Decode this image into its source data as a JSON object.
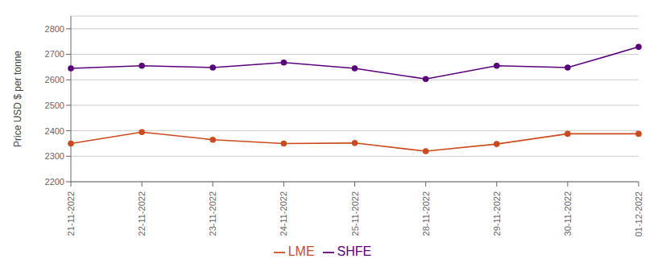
{
  "chart_data": {
    "type": "line",
    "categories": [
      "21-11-2022",
      "22-11-2022",
      "23-11-2022",
      "24-11-2022",
      "25-11-2022",
      "28-11-2022",
      "29-11-2022",
      "30-11-2022",
      "01-12-2022"
    ],
    "series": [
      {
        "name": "LME",
        "color": "#cc4a1e",
        "marker": "circle",
        "values": [
          2350,
          2395,
          2365,
          2350,
          2352,
          2320,
          2348,
          2388,
          2388
        ]
      },
      {
        "name": "SHFE",
        "color": "#5b007d",
        "marker": "circle",
        "values": [
          2645,
          2655,
          2648,
          2668,
          2645,
          2603,
          2655,
          2648,
          2729
        ]
      }
    ],
    "ylabel": "Price USD $ per tonne",
    "ylim": [
      2200,
      2850
    ],
    "yticks": [
      2200,
      2300,
      2400,
      2500,
      2600,
      2700,
      2800
    ],
    "grid": true,
    "legend": "bottom"
  }
}
